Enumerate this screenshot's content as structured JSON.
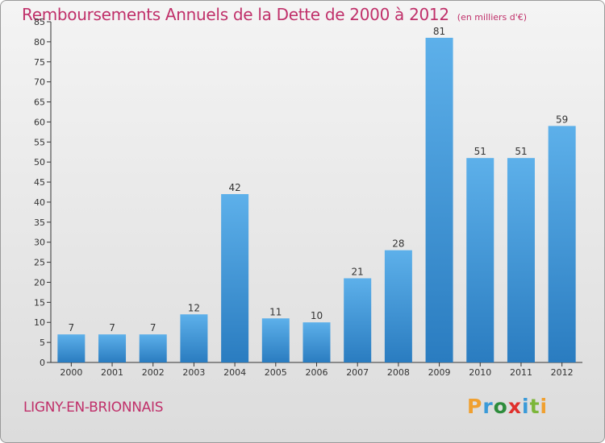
{
  "title": "Remboursements Annuels de la Dette de 2000 à 2012",
  "subtitle": "(en milliers d'€)",
  "commune": "LIGNY-EN-BRIONNAIS",
  "logo": "Proxiti",
  "colors": {
    "title": "#c0306a",
    "bar_light": "#5db0ea",
    "bar_dark": "#2a7cc0",
    "axis": "#333333"
  },
  "chart_data": {
    "type": "bar",
    "title": "Remboursements Annuels de la Dette de 2000 à 2012",
    "subtitle": "(en milliers d'€)",
    "xlabel": "",
    "ylabel": "",
    "categories": [
      "2000",
      "2001",
      "2002",
      "2003",
      "2004",
      "2005",
      "2006",
      "2007",
      "2008",
      "2009",
      "2010",
      "2011",
      "2012"
    ],
    "values": [
      7,
      7,
      7,
      12,
      42,
      11,
      10,
      21,
      28,
      81,
      51,
      51,
      59
    ],
    "ylim": [
      0,
      85
    ],
    "yticks": [
      0,
      5,
      10,
      15,
      20,
      25,
      30,
      35,
      40,
      45,
      50,
      55,
      60,
      65,
      70,
      75,
      80,
      85
    ],
    "grid": false,
    "legend": "none",
    "data_labels": true
  }
}
